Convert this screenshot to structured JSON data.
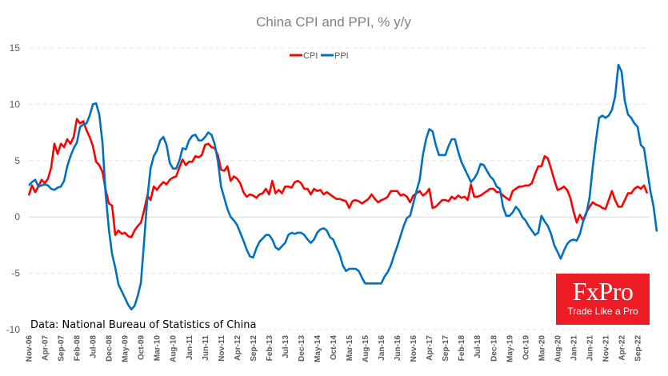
{
  "chart_data": {
    "type": "line",
    "title": "China CPI and PPI, % y/y",
    "xlabel": "",
    "ylabel": "",
    "ylim": [
      -10,
      15
    ],
    "yticks": [
      15,
      10,
      5,
      0,
      -5,
      -10
    ],
    "grid": true,
    "legend_position": "top-center",
    "x_start": "Nov-06",
    "x_end": "Oct-22",
    "frequency": "monthly",
    "xtick_labels": [
      "Nov-06",
      "Apr-07",
      "Sep-07",
      "Feb-08",
      "Jul-08",
      "Dec-08",
      "May-09",
      "Oct-09",
      "Mar-10",
      "Aug-10",
      "Jan-11",
      "Jun-11",
      "Nov-11",
      "Apr-12",
      "Sep-12",
      "Feb-13",
      "Jul-13",
      "Dec-13",
      "May-14",
      "Oct-14",
      "Mar-15",
      "Aug-15",
      "Jan-16",
      "Jun-16",
      "Nov-16",
      "Apr-17",
      "Sep-17",
      "Feb-18",
      "Jul-18",
      "Dec-18",
      "May-19",
      "Oct-19",
      "Mar-20",
      "Aug-20",
      "Jan-21",
      "Jun-21",
      "Nov-21",
      "Apr-22",
      "Sep-22"
    ],
    "series": [
      {
        "name": "CPI",
        "color": "#ff0000",
        "values": [
          1.9,
          2.8,
          2.2,
          2.7,
          3.3,
          3.0,
          3.4,
          4.4,
          6.5,
          5.6,
          6.5,
          6.2,
          6.9,
          6.5,
          7.1,
          8.7,
          8.3,
          8.5,
          7.7,
          7.1,
          6.3,
          4.9,
          4.6,
          4.0,
          2.4,
          1.2,
          1.0,
          -1.6,
          -1.2,
          -1.5,
          -1.4,
          -1.7,
          -1.8,
          -1.2,
          -0.8,
          -0.5,
          0.6,
          1.9,
          1.5,
          2.7,
          2.4,
          2.8,
          3.1,
          2.9,
          3.3,
          3.5,
          3.6,
          4.4,
          5.1,
          4.6,
          4.9,
          4.9,
          5.4,
          5.3,
          5.5,
          6.4,
          6.5,
          6.2,
          6.1,
          5.5,
          4.2,
          4.1,
          4.5,
          3.2,
          3.6,
          3.4,
          3.0,
          2.2,
          1.8,
          2.0,
          1.9,
          1.7,
          2.0,
          2.1,
          2.5,
          2.0,
          3.2,
          2.1,
          2.4,
          2.1,
          2.7,
          2.7,
          2.6,
          3.1,
          3.2,
          3.0,
          2.5,
          2.5,
          2.0,
          2.5,
          2.3,
          2.4,
          2.0,
          2.2,
          2.0,
          1.8,
          1.6,
          1.6,
          1.5,
          1.4,
          0.8,
          1.4,
          1.5,
          1.4,
          1.2,
          1.4,
          1.6,
          2.0,
          1.6,
          1.3,
          1.5,
          1.6,
          1.8,
          2.3,
          2.3,
          2.3,
          1.9,
          2.0,
          1.8,
          1.3,
          1.9,
          2.1,
          2.3,
          1.9,
          2.1,
          2.5,
          0.8,
          0.9,
          1.2,
          1.5,
          1.5,
          1.4,
          1.8,
          1.6,
          1.9,
          1.7,
          1.8,
          1.5,
          2.9,
          1.8,
          1.8,
          1.9,
          2.1,
          2.3,
          2.5,
          2.5,
          2.2,
          2.2,
          1.9,
          1.7,
          1.5,
          2.3,
          2.5,
          2.7,
          2.7,
          2.8,
          2.8,
          3.0,
          3.8,
          4.5,
          4.5,
          5.4,
          5.2,
          4.3,
          3.3,
          2.4,
          2.5,
          2.7,
          2.4,
          1.7,
          0.5,
          -0.5,
          0.2,
          -0.3,
          0.4,
          0.9,
          1.3,
          1.1,
          1.0,
          0.8,
          0.7,
          1.5,
          2.3,
          1.5,
          0.9,
          0.9,
          1.5,
          2.1,
          2.1,
          2.5,
          2.7,
          2.5,
          2.8,
          2.1
        ],
        "annotation": ""
      },
      {
        "name": "PPI",
        "color": "#0070c0",
        "values": [
          2.8,
          3.1,
          3.3,
          2.7,
          2.8,
          2.9,
          2.8,
          2.5,
          2.4,
          2.6,
          2.7,
          3.2,
          4.5,
          5.4,
          6.1,
          6.6,
          8.0,
          8.2,
          8.3,
          9.0,
          10.0,
          10.1,
          9.1,
          6.6,
          2.0,
          -1.1,
          -3.3,
          -4.5,
          -6.0,
          -6.6,
          -7.2,
          -7.8,
          -8.2,
          -7.9,
          -7.0,
          -5.8,
          -2.1,
          1.7,
          4.3,
          5.4,
          5.9,
          6.8,
          7.1,
          6.4,
          4.8,
          4.3,
          4.3,
          5.0,
          6.1,
          6.0,
          6.8,
          7.2,
          7.3,
          6.8,
          6.8,
          7.1,
          7.5,
          7.3,
          6.5,
          5.0,
          2.7,
          1.7,
          0.7,
          0.0,
          -0.3,
          -0.7,
          -1.4,
          -2.1,
          -2.9,
          -3.5,
          -3.6,
          -2.8,
          -2.2,
          -1.9,
          -1.6,
          -1.6,
          -2.0,
          -2.7,
          -2.9,
          -2.6,
          -2.3,
          -1.6,
          -1.4,
          -1.5,
          -1.4,
          -1.4,
          -1.6,
          -2.0,
          -2.3,
          -2.0,
          -1.4,
          -1.1,
          -1.0,
          -1.2,
          -1.8,
          -2.0,
          -2.7,
          -3.3,
          -4.3,
          -4.8,
          -4.6,
          -4.6,
          -4.6,
          -4.8,
          -5.4,
          -5.9,
          -5.9,
          -5.9,
          -5.9,
          -5.9,
          -5.9,
          -5.3,
          -4.9,
          -4.3,
          -3.4,
          -2.6,
          -1.7,
          -0.8,
          -0.1,
          0.1,
          1.2,
          2.3,
          3.3,
          5.5,
          6.9,
          7.8,
          7.6,
          6.4,
          5.5,
          5.5,
          5.5,
          6.3,
          6.9,
          6.9,
          5.8,
          4.9,
          4.3,
          3.7,
          3.1,
          3.4,
          3.9,
          4.7,
          4.6,
          4.1,
          3.6,
          3.3,
          2.7,
          2.5,
          0.9,
          0.1,
          0.1,
          0.4,
          0.9,
          0.6,
          0.0,
          -0.3,
          -0.8,
          -1.2,
          -1.6,
          -1.4,
          0.1,
          -0.4,
          -0.8,
          -1.5,
          -2.5,
          -3.1,
          -3.7,
          -3.0,
          -2.4,
          -2.1,
          -2.0,
          -2.1,
          -1.5,
          -0.4,
          0.3,
          1.7,
          4.4,
          6.8,
          8.8,
          9.0,
          8.8,
          9.0,
          9.5,
          10.7,
          13.5,
          12.9,
          10.3,
          9.1,
          8.8,
          8.3,
          8.0,
          6.4,
          6.1,
          4.2,
          2.3,
          0.9,
          -1.3
        ],
        "annotation": ""
      }
    ]
  },
  "source_note": "Data: National Bureau of Statistics of China",
  "logo": {
    "brand": "FxPro",
    "tagline": "Trade Like a Pro",
    "color": "#ee1c25"
  }
}
